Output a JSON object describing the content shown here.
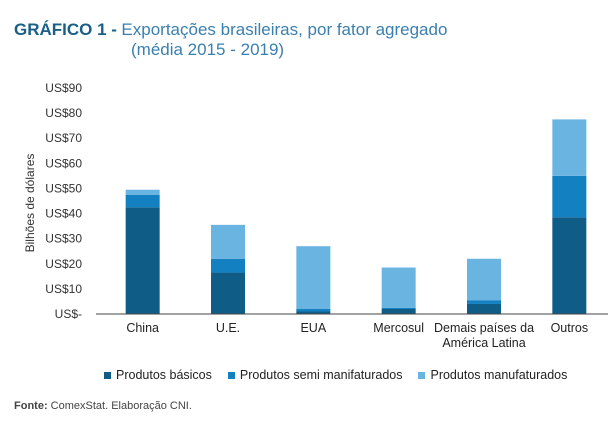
{
  "header": {
    "label": "GRÁFICO 1 -",
    "title_line1": "Exportações brasileiras, por fator agregado",
    "title_line2": "(média 2015 - 2019)"
  },
  "colors": {
    "title_label": "#1a5f86",
    "title_text": "#3a7fae",
    "basicos": "#0f5c86",
    "semi": "#1380c2",
    "manufaturados": "#6ab4e2",
    "axis": "#444444"
  },
  "source": {
    "label": "Fonte:",
    "text": "ComexStat. Elaboração CNI."
  },
  "chart_data": {
    "type": "bar",
    "stacked": true,
    "ylabel": "Bilhões de dólares",
    "ylim": [
      0,
      90
    ],
    "yticks": [
      0,
      10,
      20,
      30,
      40,
      50,
      60,
      70,
      80,
      90
    ],
    "ytick_labels": [
      "US$-",
      "US$10",
      "US$20",
      "US$30",
      "US$40",
      "US$50",
      "US$60",
      "US$70",
      "US$80",
      "US$90"
    ],
    "categories": [
      "China",
      "U.E.",
      "EUA",
      "Mercosul",
      "Demais países da América Latina",
      "Outros"
    ],
    "category_lines": [
      [
        "China"
      ],
      [
        "U.E."
      ],
      [
        "EUA"
      ],
      [
        "Mercosul"
      ],
      [
        "Demais países da",
        "América Latina"
      ],
      [
        "Outros"
      ]
    ],
    "series": [
      {
        "name": "Produtos básicos",
        "key": "basicos",
        "values": [
          42.5,
          16.5,
          1.0,
          2.0,
          4.0,
          38.5
        ]
      },
      {
        "name": "Produtos semi manifaturados",
        "key": "semi",
        "values": [
          5.0,
          5.5,
          1.0,
          0.5,
          1.5,
          16.5
        ]
      },
      {
        "name": "Produtos manufaturados",
        "key": "manufaturados",
        "values": [
          2.0,
          13.5,
          25.0,
          16.0,
          16.5,
          22.5
        ]
      }
    ],
    "legend_position": "bottom"
  }
}
